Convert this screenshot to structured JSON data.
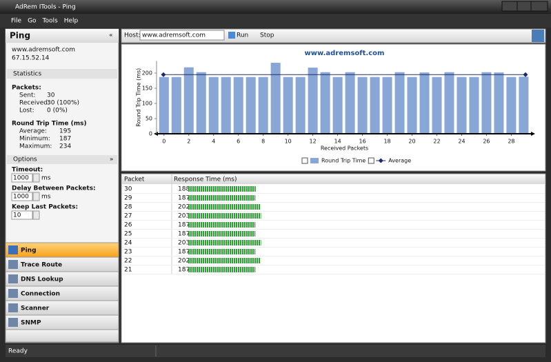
{
  "window": {
    "title": "AdRem ITools - Ping"
  },
  "menu": [
    "File",
    "Go",
    "Tools",
    "Help"
  ],
  "sidebar": {
    "title": "Ping",
    "host": "www.adremsoft.com",
    "ip": "67.15.52.14",
    "statistics_header": "Statistics",
    "packets_label": "Packets:",
    "sent_label": "Sent:",
    "sent": "30",
    "received_label": "Received:",
    "received": "30 (100%)",
    "lost_label": "Lost:",
    "lost": "0 (0%)",
    "rtt_label": "Round Trip Time (ms)",
    "average_label": "Average:",
    "average": "195",
    "minimum_label": "Minimum:",
    "minimum": "187",
    "maximum_label": "Maximum:",
    "maximum": "234",
    "options_header": "Options",
    "timeout_label": "Timeout:",
    "timeout": "1000",
    "unit": "ms",
    "delay_label": "Delay Between Packets:",
    "delay": "1000",
    "keep_label": "Keep Last Packets:",
    "keep": "10"
  },
  "nav": [
    "Ping",
    "Trace Route",
    "DNS Lookup",
    "Connection",
    "Scanner",
    "SNMP"
  ],
  "toolbar": {
    "host_label": "Host:",
    "host": "www.adremsoft.com",
    "run": "Run",
    "stop": "Stop"
  },
  "chart_data": {
    "type": "bar",
    "title": "www.adremsoft.com",
    "x_label": "Received Packets",
    "y_label": "Round Trip Time (ms)",
    "x": [
      0,
      1,
      2,
      3,
      4,
      5,
      6,
      7,
      8,
      9,
      10,
      11,
      12,
      13,
      14,
      15,
      16,
      17,
      18,
      19,
      20,
      21,
      22,
      23,
      24,
      25,
      26,
      27,
      28,
      29
    ],
    "series": [
      {
        "name": "Round Trip Time",
        "color": "#88a6d6",
        "values": [
          187,
          187,
          219,
          203,
          187,
          187,
          187,
          187,
          187,
          234,
          187,
          187,
          218,
          203,
          187,
          203,
          187,
          187,
          187,
          203,
          187,
          202,
          187,
          203,
          187,
          187,
          203,
          202,
          187,
          188
        ]
      }
    ],
    "average_line": {
      "name": "Average",
      "color": "#1c2a6e",
      "value": 195
    },
    "xlim": [
      -0.6,
      29.7
    ],
    "xticks": [
      0,
      2,
      4,
      6,
      8,
      10,
      12,
      14,
      16,
      18,
      20,
      22,
      24,
      26,
      28
    ],
    "ylim": [
      0,
      240
    ],
    "yticks": [
      0,
      50,
      100,
      150,
      200
    ],
    "grid": false,
    "legend": "bottom"
  },
  "table": {
    "headers": [
      "Packet",
      "Response Time (ms)"
    ],
    "rows": [
      [
        30,
        188
      ],
      [
        29,
        187
      ],
      [
        28,
        202
      ],
      [
        27,
        203
      ],
      [
        26,
        187
      ],
      [
        25,
        187
      ],
      [
        24,
        203
      ],
      [
        23,
        187
      ],
      [
        22,
        202
      ],
      [
        21,
        187
      ]
    ]
  },
  "status": "Ready"
}
